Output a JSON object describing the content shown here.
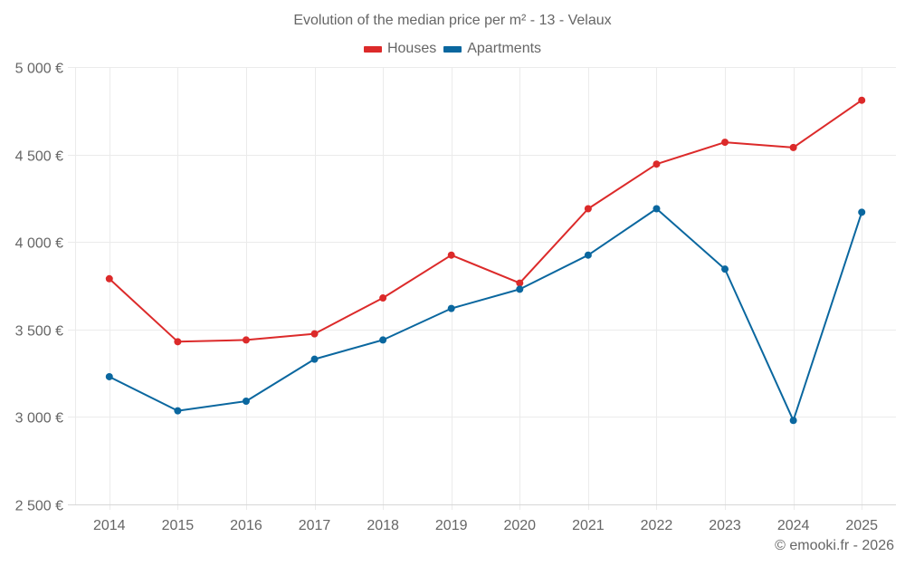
{
  "chart_data": {
    "type": "line",
    "title": "Evolution of the median price per m² - 13 - Velaux",
    "xlabel": "",
    "ylabel": "",
    "categories": [
      "2014",
      "2015",
      "2016",
      "2017",
      "2018",
      "2019",
      "2020",
      "2021",
      "2022",
      "2023",
      "2024",
      "2025"
    ],
    "ylim": [
      2500,
      5000
    ],
    "yticks": [
      2500,
      3000,
      3500,
      4000,
      4500,
      5000
    ],
    "ytick_labels": [
      "2 500 €",
      "3 000 €",
      "3 500 €",
      "4 000 €",
      "4 500 €",
      "5 000 €"
    ],
    "grid": true,
    "legend_position": "top-center",
    "series": [
      {
        "name": "Houses",
        "color": "#dc2a2a",
        "values": [
          3790,
          3430,
          3440,
          3475,
          3680,
          3925,
          3765,
          4190,
          4445,
          4570,
          4540,
          4810
        ]
      },
      {
        "name": "Apartments",
        "color": "#0a679f",
        "values": [
          3230,
          3035,
          3090,
          3330,
          3440,
          3620,
          3730,
          3925,
          4190,
          3845,
          2980,
          4170
        ]
      }
    ]
  },
  "footer": {
    "credit": "© emooki.fr - 2026"
  }
}
